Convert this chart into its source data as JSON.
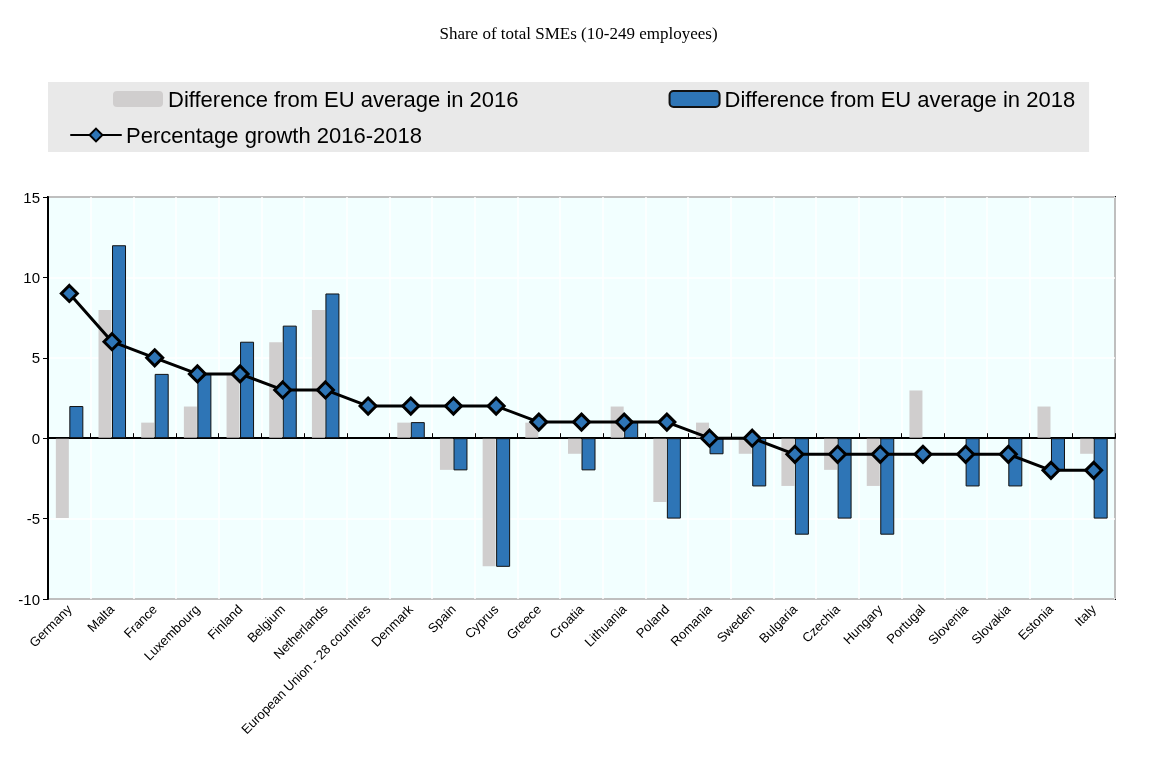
{
  "chart_data": {
    "type": "bar",
    "title": "Share of total SMEs (10-249 employees)",
    "categories": [
      "Germany",
      "Malta",
      "France",
      "Luxembourg",
      "Finland",
      "Belgium",
      "Netherlands",
      "European Union - 28 countries",
      "Denmark",
      "Spain",
      "Cyprus",
      "Greece",
      "Croatia",
      "Lithuania",
      "Poland",
      "Romania",
      "Sweden",
      "Bulgaria",
      "Czechia",
      "Hungary",
      "Portugal",
      "Slovenia",
      "Slovakia",
      "Estonia",
      "Italy"
    ],
    "series": [
      {
        "name": "Difference from EU average in 2016",
        "color": "#d0cece",
        "values": [
          -5,
          8,
          1,
          2,
          4,
          6,
          8,
          0,
          1,
          -2,
          -8,
          1,
          -1,
          2,
          -4,
          1,
          -1,
          -3,
          -2,
          -3,
          3,
          0,
          0,
          2,
          -1
        ]
      },
      {
        "name": "Difference from EU average in 2018",
        "color": "#2e75b6",
        "values": [
          2,
          12,
          4,
          4,
          6,
          7,
          9,
          0,
          1,
          -2,
          -8,
          0,
          -2,
          1,
          -5,
          -1,
          -3,
          -6,
          -5,
          -6,
          0,
          -3,
          -3,
          -2,
          -5
        ]
      },
      {
        "name": "Percentage growth 2016-2018",
        "type": "line",
        "color": "#000000",
        "marker": "diamond",
        "line_style": "solid",
        "values": [
          9,
          6,
          5,
          4,
          4,
          3,
          3,
          2,
          2,
          2,
          2,
          1,
          1,
          1,
          1,
          0,
          0,
          -1,
          -1,
          -1,
          -1,
          -1,
          -1,
          -2,
          -2
        ]
      }
    ],
    "ylim": [
      -10,
      15
    ],
    "yticks": [
      -10,
      -5,
      0,
      5,
      10,
      15
    ],
    "grid": true,
    "legend": "top"
  }
}
